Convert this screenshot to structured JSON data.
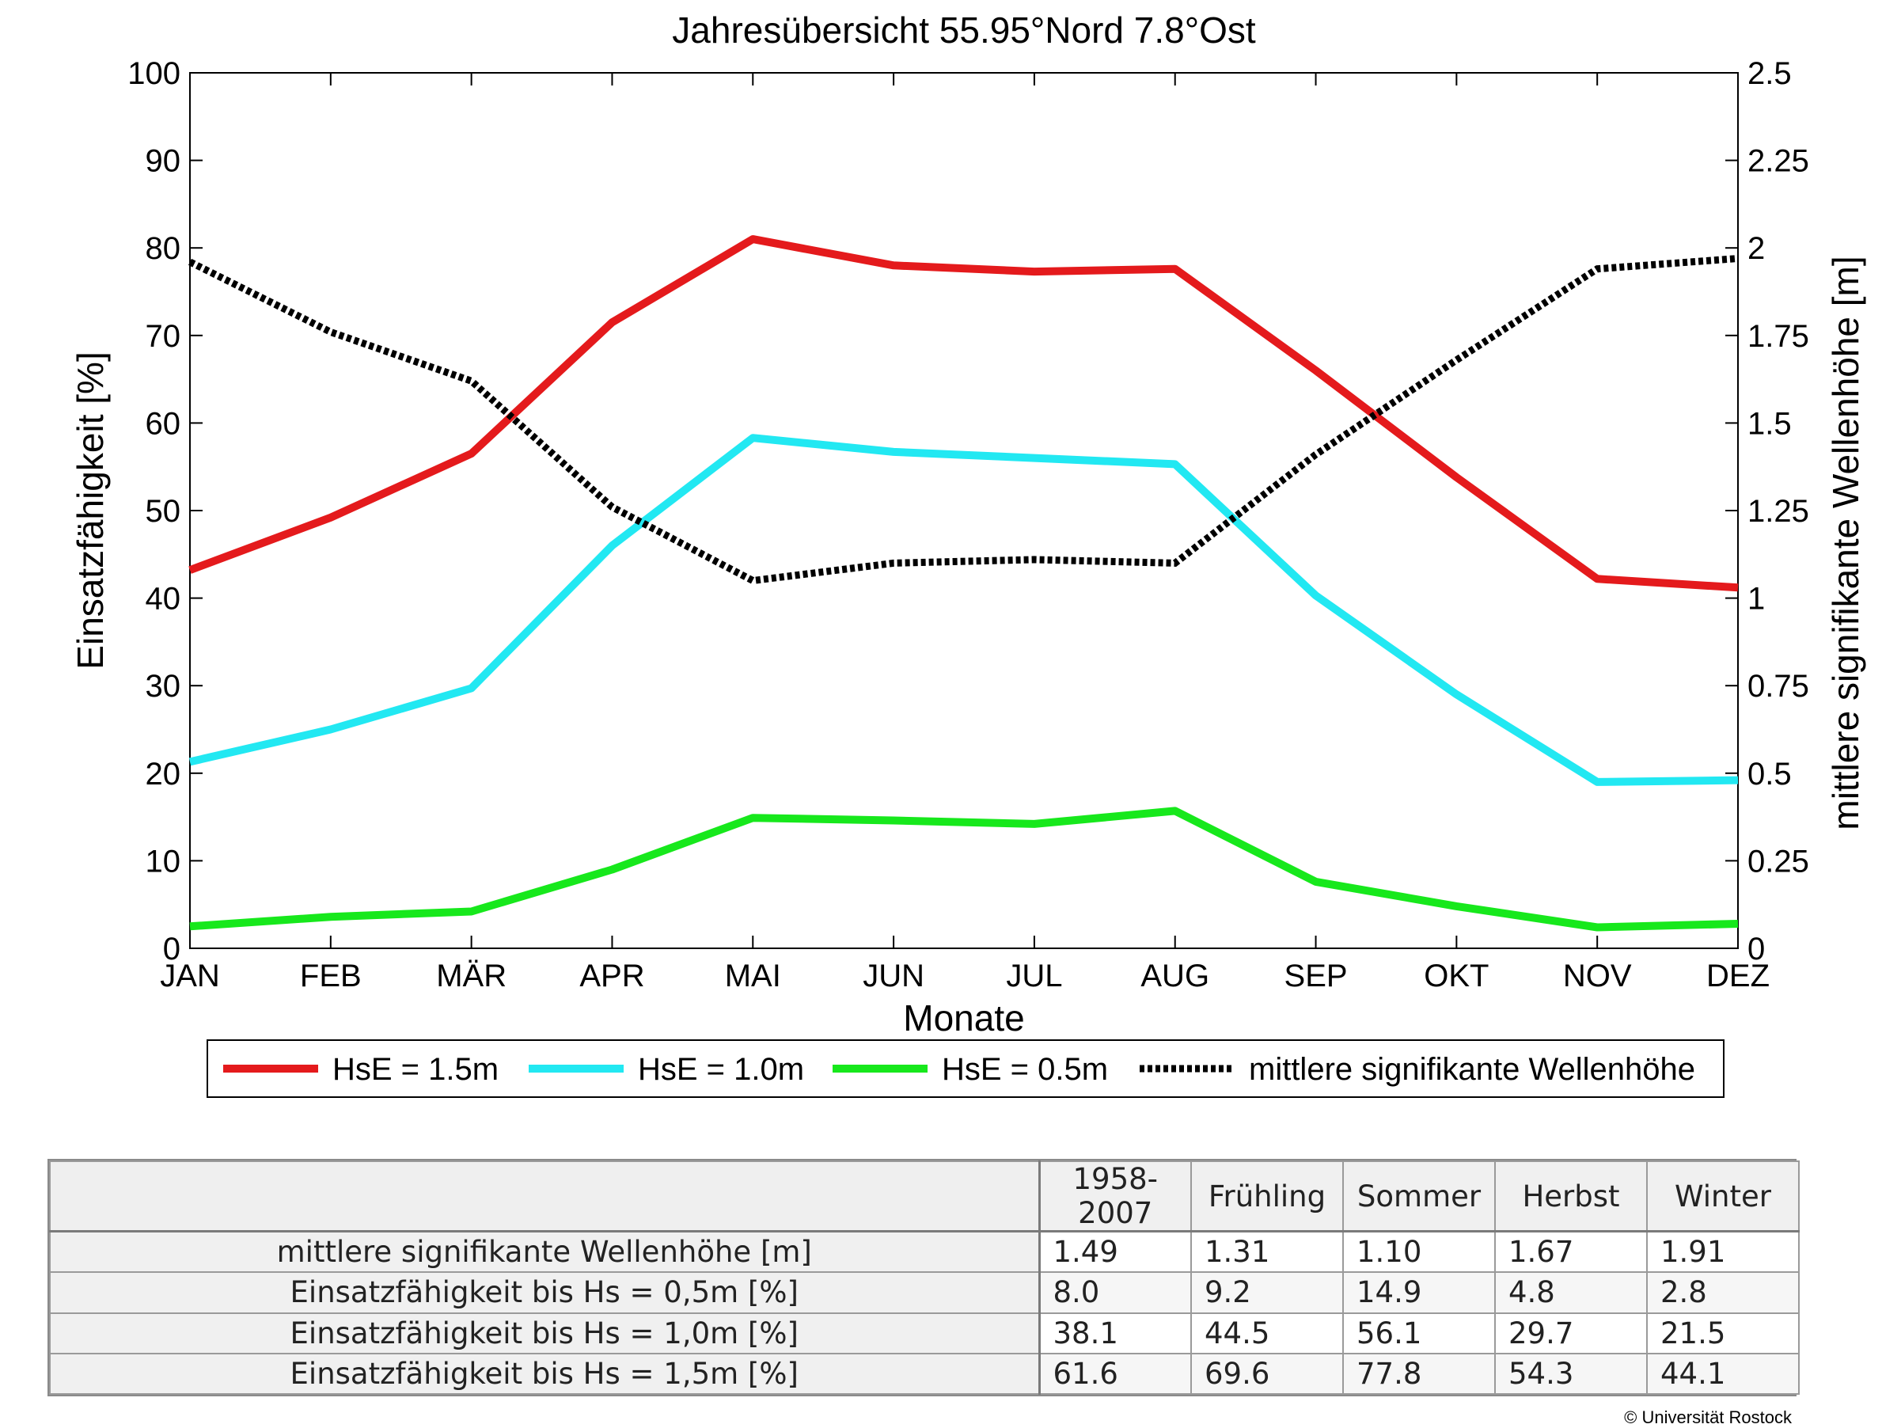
{
  "chart_data": {
    "type": "line",
    "title": "Jahresübersicht  55.95°Nord  7.8°Ost",
    "xlabel": "Monate",
    "ylabel": "Einsatzfähigkeit [%]",
    "ylabel_right": "mittlere signifikante Wellenhöhe [m]",
    "categories": [
      "JAN",
      "FEB",
      "MÄR",
      "APR",
      "MAI",
      "JUN",
      "JUL",
      "AUG",
      "SEP",
      "OKT",
      "NOV",
      "DEZ"
    ],
    "ylim": [
      0,
      100
    ],
    "ylim_right": [
      0,
      2.5
    ],
    "yticks": [
      "0",
      "10",
      "20",
      "30",
      "40",
      "50",
      "60",
      "70",
      "80",
      "90",
      "100"
    ],
    "yticks_right": [
      "0",
      "0.25",
      "0.5",
      "0.75",
      "1",
      "1.25",
      "1.5",
      "1.75",
      "2",
      "2.25",
      "2.5"
    ],
    "grid": false,
    "legend_position": "bottom",
    "series": [
      {
        "name": "HsE = 1.5m",
        "axis": "left",
        "color": "#e41a1c",
        "style": "solid",
        "values": [
          43.2,
          49.2,
          56.5,
          71.5,
          81.0,
          78.0,
          77.3,
          77.6,
          66.0,
          53.8,
          42.2,
          41.2
        ]
      },
      {
        "name": "HsE = 1.0m",
        "axis": "left",
        "color": "#22e8f2",
        "style": "solid",
        "values": [
          21.3,
          25.0,
          29.7,
          46.0,
          58.3,
          56.7,
          56.0,
          55.3,
          40.3,
          29.0,
          19.0,
          19.2
        ]
      },
      {
        "name": "HsE = 0.5m",
        "axis": "left",
        "color": "#17e81c",
        "style": "solid",
        "values": [
          2.5,
          3.6,
          4.2,
          9.0,
          14.9,
          14.6,
          14.2,
          15.7,
          7.6,
          4.8,
          2.4,
          2.8
        ]
      },
      {
        "name": "mittlere signifikante Wellenhöhe",
        "axis": "right",
        "color": "#000000",
        "style": "dotted",
        "values": [
          1.96,
          1.76,
          1.62,
          1.26,
          1.05,
          1.1,
          1.11,
          1.1,
          1.41,
          1.68,
          1.94,
          1.97
        ]
      }
    ]
  },
  "stats_table": {
    "headers": [
      "1958-2007",
      "Frühling",
      "Sommer",
      "Herbst",
      "Winter"
    ],
    "rows": [
      {
        "label": "mittlere signifikante Wellenhöhe [m]",
        "values": [
          "1.49",
          "1.31",
          "1.10",
          "1.67",
          "1.91"
        ]
      },
      {
        "label": "Einsatzfähigkeit bis Hs = 0,5m [%]",
        "values": [
          "8.0",
          "9.2",
          "14.9",
          "4.8",
          "2.8"
        ]
      },
      {
        "label": "Einsatzfähigkeit bis Hs = 1,0m [%]",
        "values": [
          "38.1",
          "44.5",
          "56.1",
          "29.7",
          "21.5"
        ]
      },
      {
        "label": "Einsatzfähigkeit bis Hs = 1,5m [%]",
        "values": [
          "61.6",
          "69.6",
          "77.8",
          "54.3",
          "44.1"
        ]
      }
    ]
  },
  "copyright": "© Universität Rostock"
}
